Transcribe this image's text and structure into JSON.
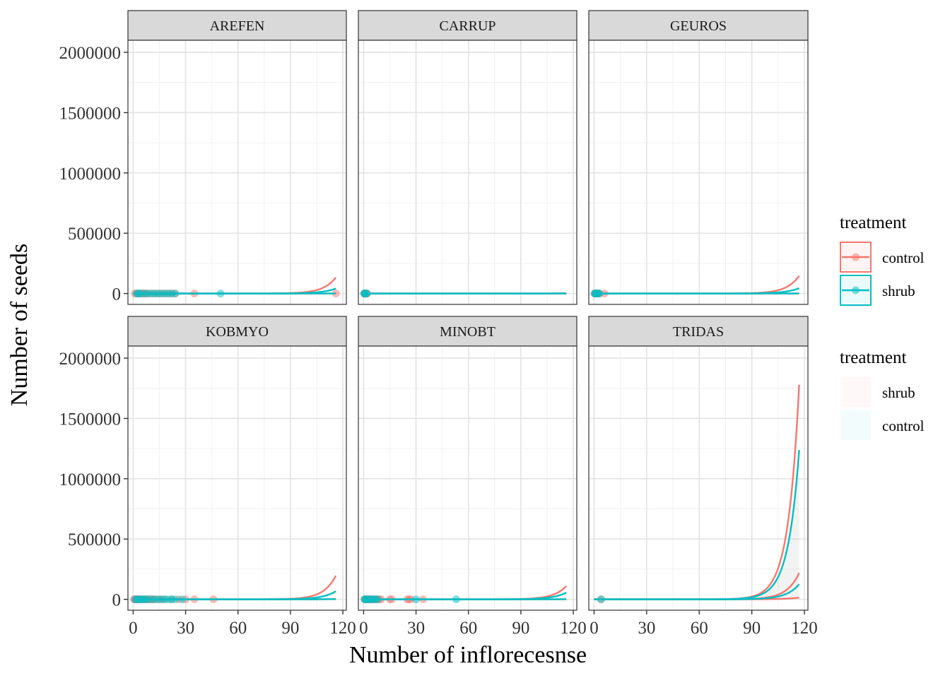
{
  "chart_data": {
    "type": "scatter",
    "xlabel": "Number of inflorecesnse",
    "ylabel": "Number of seeds",
    "xlim": [
      -3,
      122
    ],
    "ylim": [
      -90000,
      2100000
    ],
    "x_ticks": [
      0,
      30,
      60,
      90,
      120
    ],
    "x_tick_labels": [
      "0",
      "30",
      "60",
      "90",
      "120"
    ],
    "y_ticks": [
      0,
      500000,
      1000000,
      1500000,
      2000000
    ],
    "y_tick_labels": [
      "0",
      "500000",
      "1000000",
      "1500000",
      "2000000"
    ],
    "grid": true,
    "legend_placement": "right",
    "colors": {
      "control": "#F8766D",
      "shrub": "#00BFC4"
    },
    "legends": [
      {
        "title": "treatment",
        "kind": "point-line",
        "entries": [
          {
            "label": "control",
            "color": "#F8766D"
          },
          {
            "label": "shrub",
            "color": "#00BFC4"
          }
        ]
      },
      {
        "title": "treatment",
        "kind": "fill",
        "entries": [
          {
            "label": "shrub",
            "color": "#F8766D"
          },
          {
            "label": "control",
            "color": "#00BFC4"
          }
        ]
      }
    ],
    "panels": [
      {
        "name": "AREFEN",
        "points": {
          "control": [
            1,
            2,
            3,
            4,
            5,
            6,
            7,
            8,
            10,
            12,
            14,
            16,
            18,
            20,
            22,
            24,
            35,
            116
          ],
          "shrub": [
            2,
            3,
            4,
            6,
            8,
            10,
            12,
            14,
            16,
            18,
            20,
            22,
            24,
            50
          ]
        },
        "curves": [
          {
            "series": "control",
            "a": 0.0116,
            "b": 0.1402,
            "x_max": 116
          },
          {
            "series": "control",
            "a": 0.0116,
            "b": 0.0895,
            "x_max": 116
          },
          {
            "series": "shrub",
            "a": 0.0116,
            "b": 0.1302,
            "x_max": 116
          },
          {
            "series": "shrub",
            "a": 0.0116,
            "b": 0.0949,
            "x_max": 116
          }
        ],
        "band": null
      },
      {
        "name": "CARRUP",
        "points": {
          "control": [
            0.3,
            0.6,
            1,
            1.3,
            1.6,
            2
          ],
          "shrub": [
            0.3,
            0.7,
            1,
            1.4,
            1.8
          ]
        },
        "curves": [
          {
            "series": "control",
            "a": 0.0116,
            "b": 0.1002,
            "x_max": 116
          },
          {
            "series": "control",
            "a": 0.0116,
            "b": 0.0856,
            "x_max": 116
          },
          {
            "series": "shrub",
            "a": 0.0116,
            "b": 0.1026,
            "x_max": 116
          },
          {
            "series": "shrub",
            "a": 0.0116,
            "b": 0.0899,
            "x_max": 116
          }
        ],
        "band": null
      },
      {
        "name": "GEUROS",
        "points": {
          "control": [
            0.3,
            0.7,
            1,
            1.4,
            2,
            2.5,
            3,
            6
          ],
          "shrub": [
            0.3,
            0.7,
            1,
            1.5,
            2,
            2.5,
            3
          ]
        },
        "curves": [
          {
            "series": "control",
            "a": 0.0116,
            "b": 0.1398,
            "x_max": 117
          },
          {
            "series": "control",
            "a": 0.0116,
            "b": 0.0921,
            "x_max": 117
          },
          {
            "series": "shrub",
            "a": 0.0116,
            "b": 0.1294,
            "x_max": 117
          },
          {
            "series": "shrub",
            "a": 0.0116,
            "b": 0.0966,
            "x_max": 117
          }
        ],
        "band": null
      },
      {
        "name": "KOBMYO",
        "points": {
          "control": [
            0.5,
            1,
            1.5,
            2,
            2.5,
            3,
            3.5,
            4,
            5,
            6,
            7,
            8,
            9,
            10,
            11,
            12,
            14,
            16,
            18,
            22,
            26,
            30,
            35,
            46
          ],
          "shrub": [
            1,
            2,
            3,
            4,
            5,
            6,
            7,
            8,
            10,
            12,
            14,
            16,
            18,
            20,
            22,
            24,
            28
          ]
        },
        "curves": [
          {
            "series": "control",
            "a": 0.0116,
            "b": 0.1435,
            "x_max": 116
          },
          {
            "series": "control",
            "a": 0.0116,
            "b": 0.1024,
            "x_max": 116
          },
          {
            "series": "shrub",
            "a": 0.0116,
            "b": 0.1343,
            "x_max": 116
          },
          {
            "series": "shrub",
            "a": 0.0116,
            "b": 0.1071,
            "x_max": 116
          }
        ],
        "band": null
      },
      {
        "name": "MINOBT",
        "points": {
          "control": [
            0.5,
            1,
            1.5,
            2,
            2.5,
            3,
            3.5,
            4,
            5,
            6,
            7,
            8,
            9,
            10,
            15,
            16,
            25,
            26,
            27,
            34
          ],
          "shrub": [
            0.5,
            1,
            1.5,
            2,
            3,
            4,
            5,
            6,
            7,
            8,
            30,
            53
          ]
        },
        "curves": [
          {
            "series": "control",
            "a": 0.0116,
            "b": 0.1385,
            "x_max": 116
          },
          {
            "series": "control",
            "a": 0.0116,
            "b": 0.0935,
            "x_max": 116
          },
          {
            "series": "shrub",
            "a": 0.0116,
            "b": 0.1327,
            "x_max": 116
          },
          {
            "series": "shrub",
            "a": 0.0116,
            "b": 0.1003,
            "x_max": 116
          }
        ],
        "band": null
      },
      {
        "name": "TRIDAS",
        "points": {
          "control": [
            4
          ],
          "shrub": [
            4
          ]
        },
        "curves": [
          {
            "series": "control",
            "a": 0.0116,
            "b": 0.1611,
            "x_max": 117
          },
          {
            "series": "control",
            "a": 0.0116,
            "b": 0.1432,
            "x_max": 117
          },
          {
            "series": "control",
            "a": 0.0116,
            "b": 0.1198,
            "x_max": 117
          },
          {
            "series": "shrub",
            "a": 0.0116,
            "b": 0.158,
            "x_max": 117
          },
          {
            "series": "shrub",
            "a": 0.0116,
            "b": 0.1384,
            "x_max": 117
          }
        ],
        "band": {
          "lower_b": 0.1198,
          "upper_b": 0.158,
          "a": 0.0116,
          "x_max": 117,
          "color": "#9aa8a8"
        }
      }
    ]
  }
}
